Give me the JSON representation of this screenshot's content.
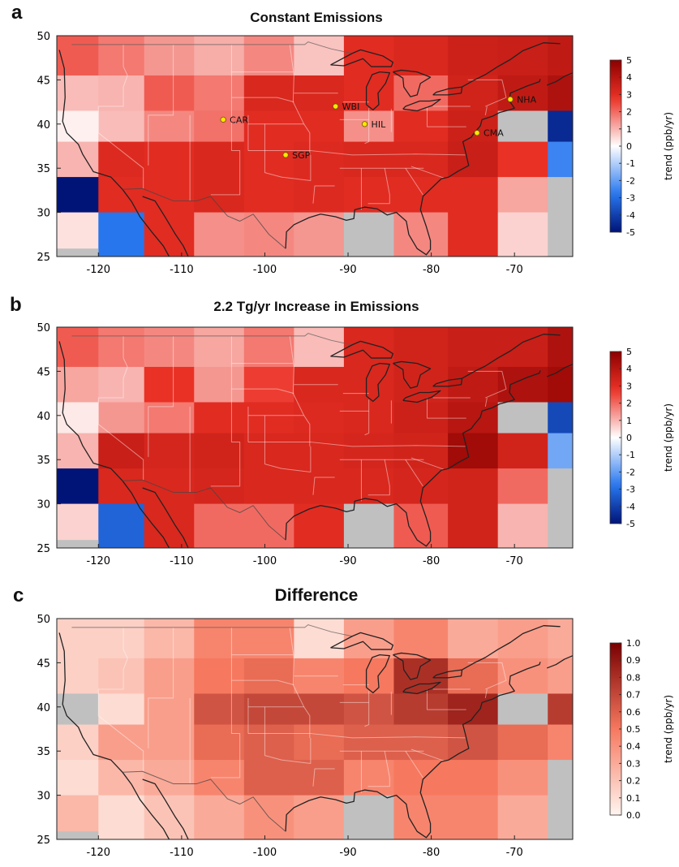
{
  "figure": {
    "panels": [
      {
        "letter": "a",
        "title": "Constant Emissions",
        "colorbar": {
          "label": "trend (ppb/yr)",
          "ticks": [
            "5",
            "4",
            "3",
            "2",
            "1",
            "0",
            "-1",
            "-2",
            "-3",
            "-4",
            "-5"
          ],
          "min": -5,
          "max": 5,
          "scheme": "diverging"
        },
        "x_ticks": [
          "-120",
          "-110",
          "-100",
          "-90",
          "-80",
          "-70"
        ],
        "y_ticks": [
          "50",
          "45",
          "40",
          "35",
          "30",
          "25"
        ],
        "sites": [
          {
            "name": "CAR",
            "lon": -105,
            "lat": 40.5
          },
          {
            "name": "WBI",
            "lon": -91.5,
            "lat": 42
          },
          {
            "name": "HIL",
            "lon": -88,
            "lat": 40
          },
          {
            "name": "SGP",
            "lon": -97.5,
            "lat": 36.5
          },
          {
            "name": "NHA",
            "lon": -70.5,
            "lat": 42.8
          },
          {
            "name": "CMA",
            "lon": -74.5,
            "lat": 39
          }
        ]
      },
      {
        "letter": "b",
        "title": "2.2 Tg/yr Increase in Emissions",
        "colorbar": {
          "label": "trend (ppb/yr)",
          "ticks": [
            "5",
            "4",
            "3",
            "2",
            "1",
            "0",
            "-1",
            "-2",
            "-3",
            "-4",
            "-5"
          ],
          "min": -5,
          "max": 5,
          "scheme": "diverging"
        },
        "x_ticks": [
          "-120",
          "-110",
          "-100",
          "-90",
          "-80",
          "-70"
        ],
        "y_ticks": [
          "50",
          "45",
          "40",
          "35",
          "30",
          "25"
        ],
        "sites": []
      },
      {
        "letter": "c",
        "title": "Difference",
        "colorbar": {
          "label": "trend (ppb/yr)",
          "ticks": [
            "1.0",
            "0.9",
            "0.8",
            "0.7",
            "0.6",
            "0.5",
            "0.4",
            "0.3",
            "0.2",
            "0.1",
            "0.0"
          ],
          "min": 0,
          "max": 1,
          "scheme": "sequential"
        },
        "x_ticks": [
          "-120",
          "-110",
          "-100",
          "-90",
          "-80",
          "-70"
        ],
        "y_ticks": [
          "50",
          "45",
          "40",
          "35",
          "30",
          "25"
        ],
        "sites": []
      }
    ]
  }
}
